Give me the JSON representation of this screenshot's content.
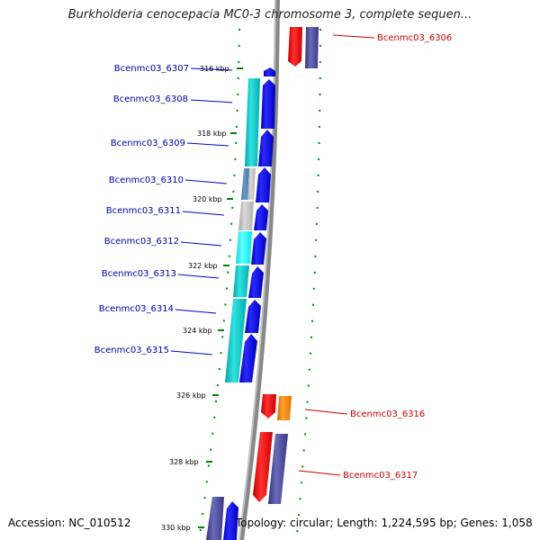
{
  "title": "Burkholderia cenocepacia MC0-3 chromosome 3, complete sequen...",
  "footer": {
    "accession": "Accession: NC_010512",
    "info": "Topology: circular; Length: 1,224,595 bp; Genes: 1,058"
  },
  "colors": {
    "backbone": "#888888",
    "forward_cds": "#0000ee",
    "reverse_cds": "#ee0000",
    "left_label": "#0000aa",
    "right_label": "#cc0000",
    "tick": "#008800"
  },
  "ticks": [
    "316 kbp",
    "318 kbp",
    "320 kbp",
    "322 kbp",
    "324 kbp",
    "326 kbp",
    "328 kbp",
    "330 kbp"
  ],
  "left_genes": [
    "Bcenmc03_6307",
    "Bcenmc03_6308",
    "Bcenmc03_6309",
    "Bcenmc03_6310",
    "Bcenmc03_6311",
    "Bcenmc03_6312",
    "Bcenmc03_6313",
    "Bcenmc03_6314",
    "Bcenmc03_6315"
  ],
  "right_genes": [
    "Bcenmc03_6306",
    "Bcenmc03_6316",
    "Bcenmc03_6317"
  ]
}
